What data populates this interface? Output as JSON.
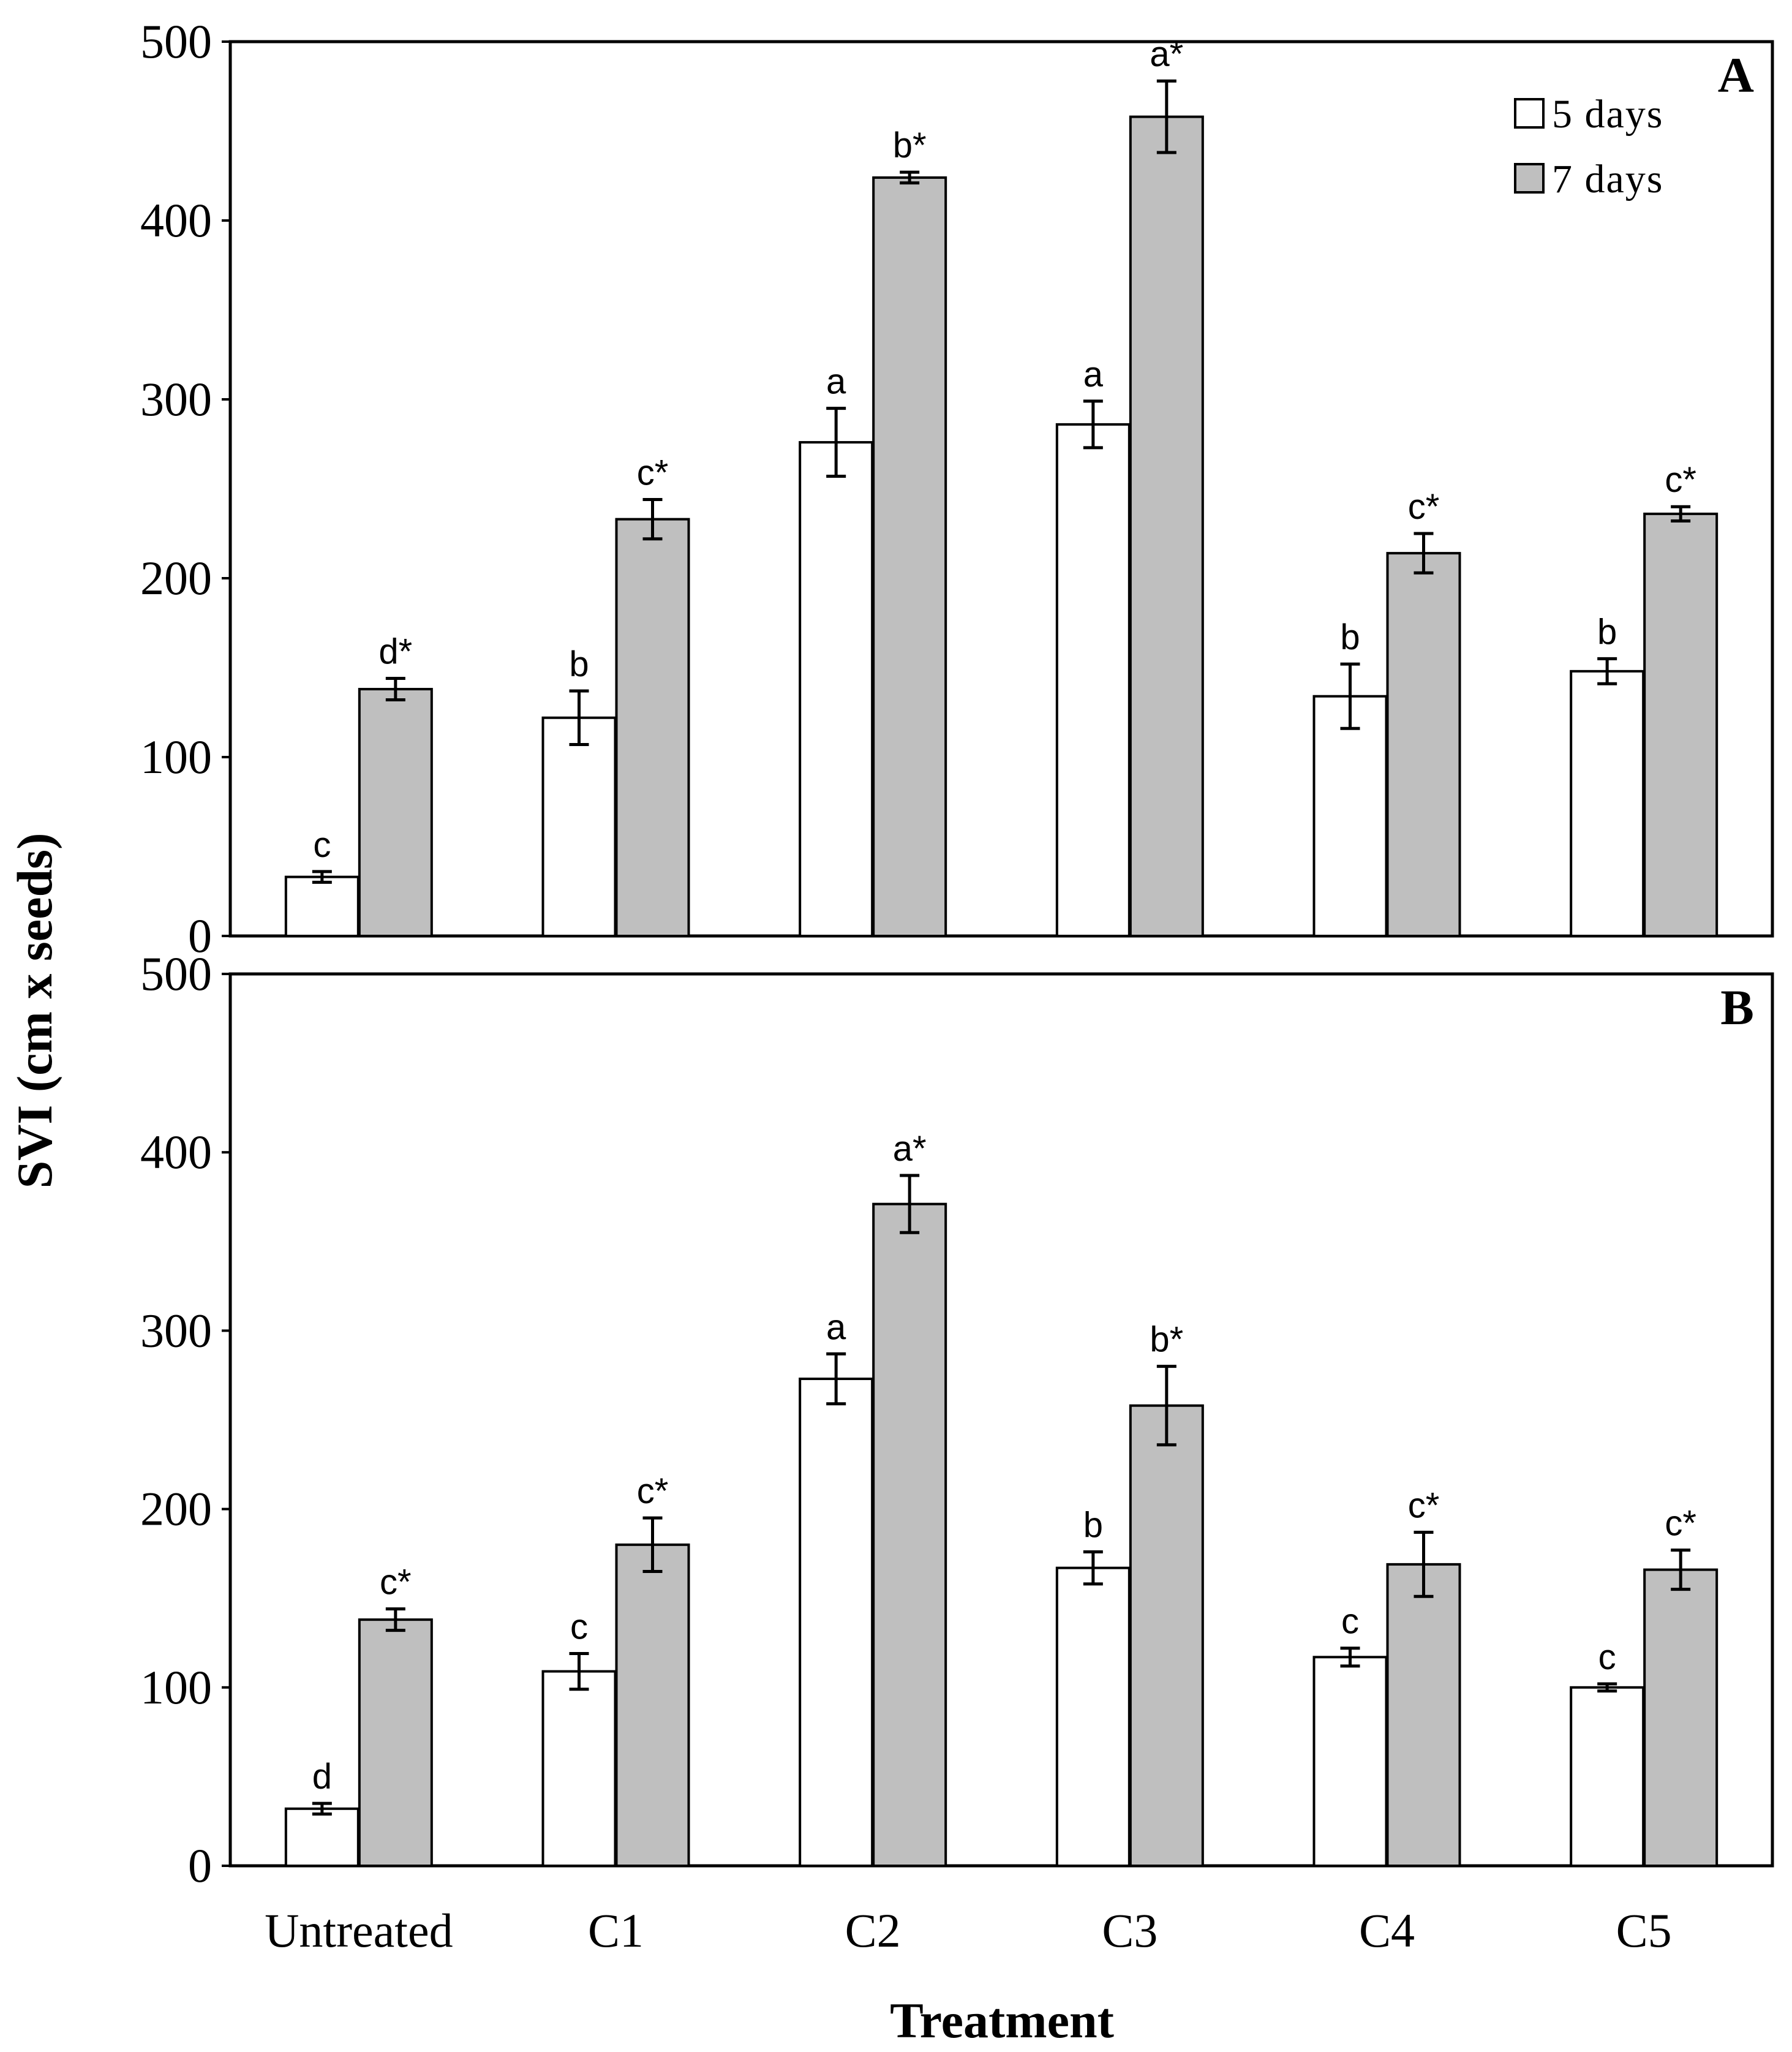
{
  "colors": {
    "series_5days": "#ffffff",
    "series_7days": "#bfbfbf",
    "outline": "#000000"
  },
  "chart_data": {
    "type": "bar",
    "shared": {
      "xlabel": "Treatment",
      "ylabel": "SVI (cm x seeds)",
      "categories": [
        "Untreated",
        "C1",
        "C2",
        "C3",
        "C4",
        "C5"
      ],
      "ylim": [
        0,
        500
      ],
      "yticks": [
        0,
        100,
        200,
        300,
        400,
        500
      ],
      "legend": {
        "placement": "top-right",
        "entries": [
          "5 days",
          "7 days"
        ]
      }
    },
    "panels": [
      {
        "panel_label": "A",
        "series": [
          {
            "name": "5 days",
            "values": [
              33,
              122,
              276,
              286,
              134,
              148
            ],
            "errors": [
              3,
              15,
              19,
              13,
              18,
              7
            ],
            "labels": [
              "c",
              "b",
              "a",
              "a",
              "b",
              "b"
            ]
          },
          {
            "name": "7 days",
            "values": [
              138,
              233,
              424,
              458,
              214,
              236
            ],
            "errors": [
              6,
              11,
              3,
              20,
              11,
              4
            ],
            "labels": [
              "d*",
              "c*",
              "b*",
              "a*",
              "c*",
              "c*"
            ]
          }
        ]
      },
      {
        "panel_label": "B",
        "series": [
          {
            "name": "5 days",
            "values": [
              32,
              109,
              273,
              167,
              117,
              100
            ],
            "errors": [
              3,
              10,
              14,
              9,
              5,
              2
            ],
            "labels": [
              "d",
              "c",
              "a",
              "b",
              "c",
              "c"
            ]
          },
          {
            "name": "7 days",
            "values": [
              138,
              180,
              371,
              258,
              169,
              166
            ],
            "errors": [
              6,
              15,
              16,
              22,
              18,
              11
            ],
            "labels": [
              "c*",
              "c*",
              "a*",
              "b*",
              "c*",
              "c*"
            ]
          }
        ]
      }
    ]
  }
}
